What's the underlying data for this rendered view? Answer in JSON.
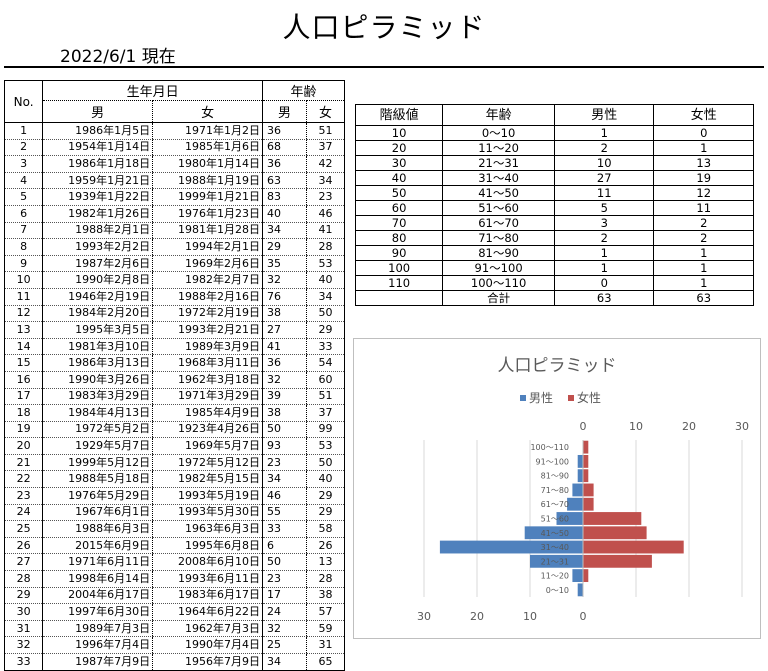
{
  "title": "人口ピラミッド",
  "as_of": "2022/6/1 現在",
  "left_table": {
    "headers": {
      "no": "No.",
      "birthdate": "生年月日",
      "age": "年齢",
      "male": "男",
      "female": "女",
      "age_male": "男",
      "age_female": "女"
    },
    "rows": [
      {
        "no": "1",
        "m_date": "1986年1月5日",
        "f_date": "1971年1月2日",
        "m_age": "36",
        "f_age": "51"
      },
      {
        "no": "2",
        "m_date": "1954年1月14日",
        "f_date": "1985年1月6日",
        "m_age": "68",
        "f_age": "37"
      },
      {
        "no": "3",
        "m_date": "1986年1月18日",
        "f_date": "1980年1月14日",
        "m_age": "36",
        "f_age": "42"
      },
      {
        "no": "4",
        "m_date": "1959年1月21日",
        "f_date": "1988年1月19日",
        "m_age": "63",
        "f_age": "34"
      },
      {
        "no": "5",
        "m_date": "1939年1月22日",
        "f_date": "1999年1月21日",
        "m_age": "83",
        "f_age": "23"
      },
      {
        "no": "6",
        "m_date": "1982年1月26日",
        "f_date": "1976年1月23日",
        "m_age": "40",
        "f_age": "46"
      },
      {
        "no": "7",
        "m_date": "1988年2月1日",
        "f_date": "1981年1月28日",
        "m_age": "34",
        "f_age": "41"
      },
      {
        "no": "8",
        "m_date": "1993年2月2日",
        "f_date": "1994年2月1日",
        "m_age": "29",
        "f_age": "28"
      },
      {
        "no": "9",
        "m_date": "1987年2月6日",
        "f_date": "1969年2月6日",
        "m_age": "35",
        "f_age": "53"
      },
      {
        "no": "10",
        "m_date": "1990年2月8日",
        "f_date": "1982年2月7日",
        "m_age": "32",
        "f_age": "40"
      },
      {
        "no": "11",
        "m_date": "1946年2月19日",
        "f_date": "1988年2月16日",
        "m_age": "76",
        "f_age": "34"
      },
      {
        "no": "12",
        "m_date": "1984年2月20日",
        "f_date": "1972年2月19日",
        "m_age": "38",
        "f_age": "50"
      },
      {
        "no": "13",
        "m_date": "1995年3月5日",
        "f_date": "1993年2月21日",
        "m_age": "27",
        "f_age": "29"
      },
      {
        "no": "14",
        "m_date": "1981年3月10日",
        "f_date": "1989年3月9日",
        "m_age": "41",
        "f_age": "33"
      },
      {
        "no": "15",
        "m_date": "1986年3月13日",
        "f_date": "1968年3月11日",
        "m_age": "36",
        "f_age": "54"
      },
      {
        "no": "16",
        "m_date": "1990年3月26日",
        "f_date": "1962年3月18日",
        "m_age": "32",
        "f_age": "60"
      },
      {
        "no": "17",
        "m_date": "1983年3月29日",
        "f_date": "1971年3月29日",
        "m_age": "39",
        "f_age": "51"
      },
      {
        "no": "18",
        "m_date": "1984年4月13日",
        "f_date": "1985年4月9日",
        "m_age": "38",
        "f_age": "37"
      },
      {
        "no": "19",
        "m_date": "1972年5月2日",
        "f_date": "1923年4月26日",
        "m_age": "50",
        "f_age": "99"
      },
      {
        "no": "20",
        "m_date": "1929年5月7日",
        "f_date": "1969年5月7日",
        "m_age": "93",
        "f_age": "53"
      },
      {
        "no": "21",
        "m_date": "1999年5月12日",
        "f_date": "1972年5月12日",
        "m_age": "23",
        "f_age": "50"
      },
      {
        "no": "22",
        "m_date": "1988年5月18日",
        "f_date": "1982年5月15日",
        "m_age": "34",
        "f_age": "40"
      },
      {
        "no": "23",
        "m_date": "1976年5月29日",
        "f_date": "1993年5月19日",
        "m_age": "46",
        "f_age": "29"
      },
      {
        "no": "24",
        "m_date": "1967年6月1日",
        "f_date": "1993年5月30日",
        "m_age": "55",
        "f_age": "29"
      },
      {
        "no": "25",
        "m_date": "1988年6月3日",
        "f_date": "1963年6月3日",
        "m_age": "33",
        "f_age": "58"
      },
      {
        "no": "26",
        "m_date": "2015年6月9日",
        "f_date": "1995年6月8日",
        "m_age": "6",
        "f_age": "26"
      },
      {
        "no": "27",
        "m_date": "1971年6月11日",
        "f_date": "2008年6月10日",
        "m_age": "50",
        "f_age": "13"
      },
      {
        "no": "28",
        "m_date": "1998年6月14日",
        "f_date": "1993年6月11日",
        "m_age": "23",
        "f_age": "28"
      },
      {
        "no": "29",
        "m_date": "2004年6月17日",
        "f_date": "1983年6月17日",
        "m_age": "17",
        "f_age": "38"
      },
      {
        "no": "30",
        "m_date": "1997年6月30日",
        "f_date": "1964年6月22日",
        "m_age": "24",
        "f_age": "57"
      },
      {
        "no": "31",
        "m_date": "1989年7月3日",
        "f_date": "1962年7月3日",
        "m_age": "32",
        "f_age": "59"
      },
      {
        "no": "32",
        "m_date": "1996年7月4日",
        "f_date": "1990年7月4日",
        "m_age": "25",
        "f_age": "31"
      },
      {
        "no": "33",
        "m_date": "1987年7月9日",
        "f_date": "1956年7月9日",
        "m_age": "34",
        "f_age": "65"
      }
    ]
  },
  "right_table": {
    "headers": [
      "階級値",
      "年齢",
      "男性",
      "女性"
    ],
    "rows": [
      {
        "cls": "10",
        "range": "0～10",
        "m": "1",
        "f": "0"
      },
      {
        "cls": "20",
        "range": "11～20",
        "m": "2",
        "f": "1"
      },
      {
        "cls": "30",
        "range": "21～31",
        "m": "10",
        "f": "13"
      },
      {
        "cls": "40",
        "range": "31～40",
        "m": "27",
        "f": "19"
      },
      {
        "cls": "50",
        "range": "41～50",
        "m": "11",
        "f": "12"
      },
      {
        "cls": "60",
        "range": "51～60",
        "m": "5",
        "f": "11"
      },
      {
        "cls": "70",
        "range": "61～70",
        "m": "3",
        "f": "2"
      },
      {
        "cls": "80",
        "range": "71～80",
        "m": "2",
        "f": "2"
      },
      {
        "cls": "90",
        "range": "81～90",
        "m": "1",
        "f": "1"
      },
      {
        "cls": "100",
        "range": "91～100",
        "m": "1",
        "f": "1"
      },
      {
        "cls": "110",
        "range": "100～110",
        "m": "0",
        "f": "1"
      }
    ],
    "total": {
      "label": "合計",
      "m": "63",
      "f": "63"
    }
  },
  "chart_data": {
    "type": "bar",
    "orientation": "horizontal-pyramid",
    "title": "人口ピラミッド",
    "categories": [
      "0～10",
      "11～20",
      "21～31",
      "31～40",
      "41～50",
      "51～60",
      "61～70",
      "71～80",
      "81～90",
      "91～100",
      "100～110"
    ],
    "series": [
      {
        "name": "男性",
        "values": [
          1,
          2,
          10,
          27,
          11,
          5,
          3,
          2,
          1,
          1,
          0
        ],
        "color": "#4f81bd"
      },
      {
        "name": "女性",
        "values": [
          0,
          1,
          13,
          19,
          12,
          11,
          2,
          2,
          1,
          1,
          1
        ],
        "color": "#c0504d"
      }
    ],
    "top_ticks": [
      "0",
      "10",
      "20",
      "30"
    ],
    "bottom_ticks": [
      "30",
      "20",
      "10",
      "0"
    ],
    "xlim": [
      0,
      30
    ],
    "legend_position": "top",
    "grid": true
  }
}
